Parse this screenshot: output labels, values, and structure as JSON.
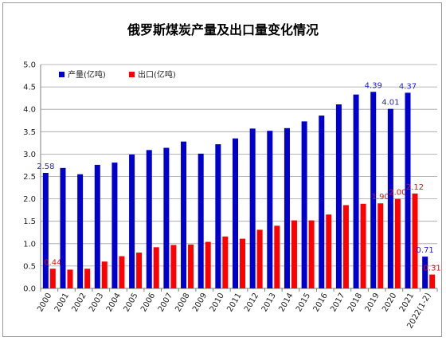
{
  "chart_data": {
    "type": "bar",
    "title": "俄罗斯煤炭产量及出口量变化情况",
    "xlabel": "",
    "ylabel": "",
    "ylim": [
      0,
      5.0
    ],
    "ytick_step": 0.5,
    "grid": "y-major",
    "legend_position": "top-left",
    "categories": [
      "2000",
      "2001",
      "2002",
      "2003",
      "2004",
      "2005",
      "2006",
      "2007",
      "2008",
      "2009",
      "2010",
      "2011",
      "2012",
      "2013",
      "2014",
      "2015",
      "2016",
      "2017",
      "2018",
      "2019",
      "2020",
      "2021",
      "2022(1-2)"
    ],
    "series": [
      {
        "name": "产量(亿吨)",
        "color": "#0000cc",
        "values": [
          2.58,
          2.69,
          2.55,
          2.76,
          2.81,
          2.99,
          3.09,
          3.14,
          3.28,
          3.01,
          3.22,
          3.35,
          3.57,
          3.52,
          3.58,
          3.73,
          3.86,
          4.11,
          4.33,
          4.39,
          4.01,
          4.37,
          0.71
        ],
        "data_labels": [
          "2.58",
          "",
          "",
          "",
          "",
          "",
          "",
          "",
          "",
          "",
          "",
          "",
          "",
          "",
          "",
          "",
          "",
          "",
          "",
          "4.39",
          "4.01",
          "4.37",
          "0.71"
        ]
      },
      {
        "name": "出口(亿吨)",
        "color": "#ff0000",
        "values": [
          0.44,
          0.42,
          0.44,
          0.6,
          0.72,
          0.8,
          0.92,
          0.97,
          0.98,
          1.04,
          1.16,
          1.11,
          1.31,
          1.4,
          1.52,
          1.52,
          1.65,
          1.86,
          1.89,
          1.9,
          2.0,
          2.12,
          0.31
        ],
        "data_labels": [
          "0.44",
          "",
          "",
          "",
          "",
          "",
          "",
          "",
          "",
          "",
          "",
          "",
          "",
          "",
          "",
          "",
          "",
          "",
          "",
          "1.90",
          "2.00",
          "2.12",
          "0.31"
        ]
      }
    ]
  }
}
